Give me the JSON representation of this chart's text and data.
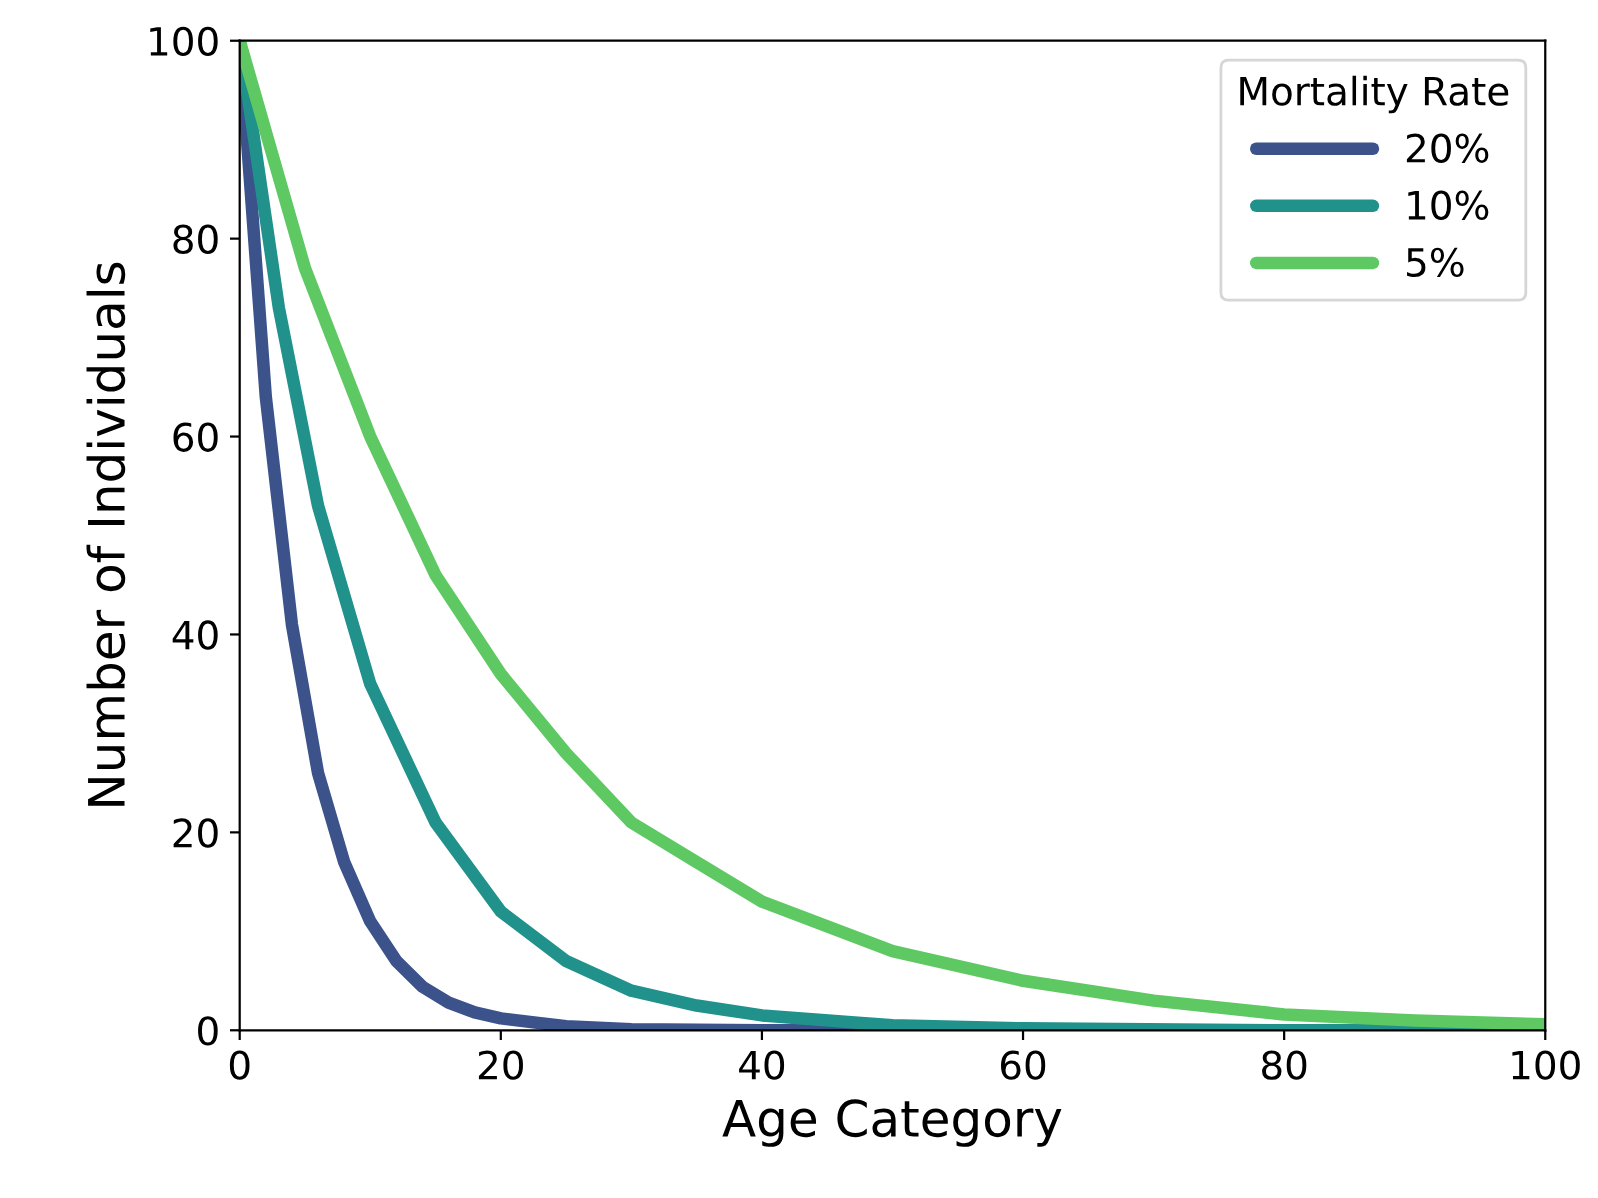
{
  "chart_data": {
    "type": "line",
    "xlabel": "Age Category",
    "ylabel": "Number of Individuals",
    "legend_title": "Mortality Rate",
    "legend": "top right",
    "grid": false,
    "marker": "none",
    "line_style": "solid",
    "xlim": [
      0,
      100
    ],
    "ylim": [
      0,
      100
    ],
    "xticks": [
      0,
      20,
      40,
      60,
      80,
      100
    ],
    "yticks": [
      0,
      20,
      40,
      60,
      80,
      100
    ],
    "series": [
      {
        "name": "20%",
        "color": "#3b528b",
        "x": [
          0,
          2,
          4,
          6,
          8,
          10,
          12,
          14,
          16,
          18,
          20,
          25,
          30,
          40,
          60,
          100
        ],
        "values": [
          100,
          64,
          41,
          26,
          17,
          11,
          7,
          4.4,
          2.8,
          1.8,
          1.2,
          0.4,
          0.1,
          0,
          0,
          0
        ]
      },
      {
        "name": "10%",
        "color": "#21918c",
        "x": [
          0,
          3,
          6,
          10,
          15,
          20,
          25,
          30,
          35,
          40,
          50,
          60,
          80,
          100
        ],
        "values": [
          100,
          73,
          53,
          35,
          21,
          12,
          7,
          4,
          2.5,
          1.5,
          0.5,
          0.2,
          0,
          0
        ]
      },
      {
        "name": "5%",
        "color": "#5ec962",
        "x": [
          0,
          5,
          10,
          15,
          20,
          25,
          30,
          35,
          40,
          50,
          60,
          70,
          80,
          90,
          100
        ],
        "values": [
          100,
          77,
          60,
          46,
          36,
          28,
          21,
          17,
          13,
          8,
          5,
          3,
          1.6,
          1,
          0.6
        ]
      }
    ]
  }
}
